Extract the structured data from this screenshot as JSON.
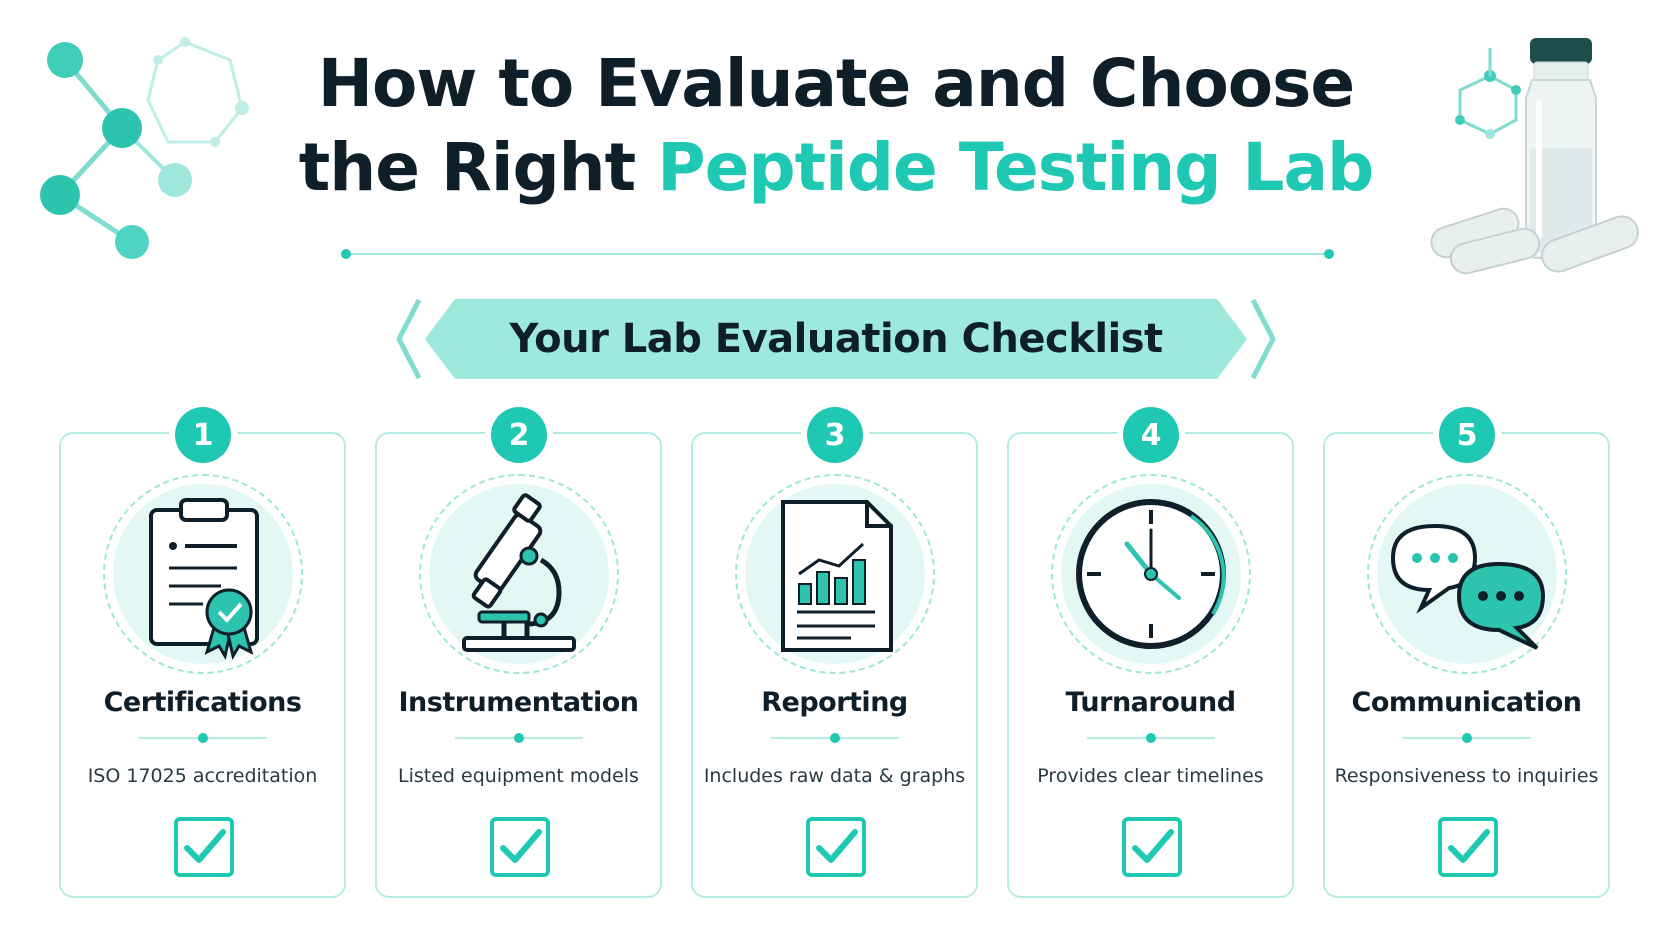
{
  "title": {
    "line1": "How to Evaluate and Choose",
    "line2_prefix": "the Right ",
    "line2_accent": "Peptide Testing Lab"
  },
  "banner": {
    "label": "Your Lab Evaluation Checklist"
  },
  "colors": {
    "accent": "#1ec8b2",
    "accent_light": "#9ee9de",
    "text": "#0f1f2a"
  },
  "cards": [
    {
      "number": "1",
      "title": "Certifications",
      "description": "ISO 17025 accreditation",
      "icon": "certificate-clipboard-icon",
      "checked": true
    },
    {
      "number": "2",
      "title": "Instrumentation",
      "description": "Listed equipment models",
      "icon": "microscope-icon",
      "checked": true
    },
    {
      "number": "3",
      "title": "Reporting",
      "description": "Includes raw data & graphs",
      "icon": "report-chart-icon",
      "checked": true
    },
    {
      "number": "4",
      "title": "Turnaround",
      "description": "Provides clear timelines",
      "icon": "clock-icon",
      "checked": true
    },
    {
      "number": "5",
      "title": "Communication",
      "description": "Responsiveness to inquiries",
      "icon": "chat-bubbles-icon",
      "checked": true
    }
  ]
}
